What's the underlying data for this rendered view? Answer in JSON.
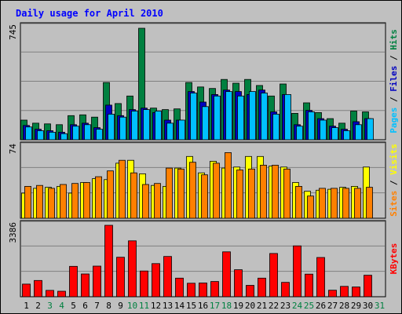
{
  "title": "Daily usage for April 2010",
  "colors": {
    "background": "#c0c0c0",
    "title": "#0000ff",
    "hits": "#008040",
    "files": "#0000c0",
    "pages": "#00c0ff",
    "visits": "#ffff00",
    "sites": "#ff8000",
    "kbytes": "#ff0000",
    "weekend_label": "#008040",
    "gridline": "#808080"
  },
  "chart_data": [
    {
      "type": "bar",
      "panel": "top",
      "max_label": "745",
      "ylim": [
        0,
        745
      ],
      "right_labels": [
        "Pages",
        "Files",
        "Hits"
      ],
      "x": [
        1,
        2,
        3,
        4,
        5,
        6,
        7,
        8,
        9,
        10,
        11,
        12,
        13,
        14,
        15,
        16,
        17,
        18,
        19,
        20,
        21,
        22,
        23,
        24,
        25,
        26,
        27,
        28,
        29,
        30
      ],
      "series": [
        {
          "name": "Hits",
          "values": [
            130,
            110,
            105,
            100,
            160,
            165,
            150,
            380,
            240,
            290,
            740,
            210,
            200,
            205,
            380,
            350,
            340,
            400,
            375,
            400,
            360,
            290,
            370,
            175,
            245,
            180,
            140,
            110,
            190,
            185
          ]
        },
        {
          "name": "Files",
          "values": [
            95,
            70,
            60,
            50,
            100,
            110,
            80,
            230,
            160,
            200,
            210,
            180,
            130,
            130,
            320,
            250,
            300,
            330,
            320,
            300,
            330,
            185,
            300,
            100,
            195,
            140,
            90,
            70,
            120,
            140
          ]
        },
        {
          "name": "Pages",
          "values": [
            85,
            60,
            50,
            40,
            90,
            100,
            70,
            170,
            150,
            190,
            200,
            190,
            110,
            130,
            310,
            220,
            290,
            320,
            290,
            320,
            310,
            170,
            300,
            90,
            185,
            130,
            80,
            60,
            100,
            140
          ]
        }
      ]
    },
    {
      "type": "bar",
      "panel": "middle",
      "max_label": "74",
      "ylim": [
        0,
        74
      ],
      "right_labels": [
        "Sites",
        "Visits"
      ],
      "x": [
        1,
        2,
        3,
        4,
        5,
        6,
        7,
        8,
        9,
        10,
        11,
        12,
        13,
        14,
        15,
        16,
        17,
        18,
        19,
        20,
        21,
        22,
        23,
        24,
        25,
        26,
        27,
        28,
        29,
        30
      ],
      "series": [
        {
          "name": "Visits",
          "values": [
            26,
            31,
            32,
            33,
            26,
            37,
            41,
            40,
            57,
            60,
            46,
            34,
            33,
            52,
            64,
            47,
            59,
            52,
            53,
            64,
            64,
            54,
            53,
            37,
            28,
            29,
            30,
            32,
            33,
            53
          ]
        },
        {
          "name": "Sites",
          "values": [
            33,
            34,
            31,
            35,
            36,
            37,
            43,
            49,
            60,
            47,
            35,
            36,
            52,
            51,
            58,
            45,
            57,
            68,
            50,
            51,
            55,
            55,
            51,
            33,
            23,
            31,
            31,
            31,
            31,
            32
          ]
        }
      ]
    },
    {
      "type": "bar",
      "panel": "bottom",
      "max_label": "3386",
      "ylim": [
        0,
        3386
      ],
      "right_labels": [
        "KBytes"
      ],
      "x": [
        1,
        2,
        3,
        4,
        5,
        6,
        7,
        8,
        9,
        10,
        11,
        12,
        13,
        14,
        15,
        16,
        17,
        18,
        19,
        20,
        21,
        22,
        23,
        24,
        25,
        26,
        27,
        28,
        29,
        30
      ],
      "series": [
        {
          "name": "KBytes",
          "values": [
            600,
            770,
            300,
            260,
            1440,
            1080,
            1450,
            3386,
            1870,
            2650,
            1220,
            1570,
            1910,
            880,
            640,
            650,
            720,
            2130,
            1280,
            540,
            880,
            2050,
            680,
            2410,
            1070,
            1860,
            310,
            490,
            460,
            1020
          ]
        }
      ]
    }
  ],
  "x_labels": [
    "1",
    "2",
    "3",
    "4",
    "5",
    "6",
    "7",
    "8",
    "9",
    "10",
    "11",
    "12",
    "13",
    "14",
    "15",
    "16",
    "17",
    "18",
    "19",
    "20",
    "21",
    "22",
    "23",
    "24",
    "25",
    "26",
    "27",
    "28",
    "29",
    "30",
    "31"
  ],
  "weekend_days": [
    3,
    4,
    10,
    11,
    17,
    18,
    24,
    25,
    31
  ]
}
